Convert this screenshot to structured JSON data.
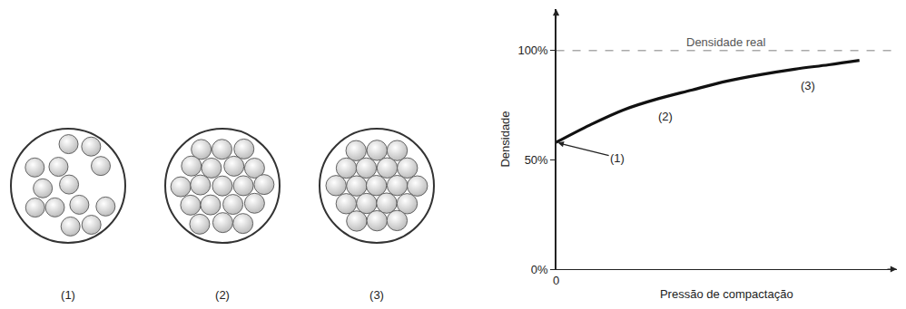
{
  "chart_data": {
    "type": "line",
    "xlabel": "Pressão de compactação",
    "ylabel": "Densidade",
    "xlim": [
      0,
      100
    ],
    "xticks": [
      0
    ],
    "ylim": [
      0,
      119
    ],
    "yticks": [
      {
        "value": 0,
        "label": "0%"
      },
      {
        "value": 50,
        "label": "50%"
      },
      {
        "value": 100,
        "label": "100%"
      }
    ],
    "grid": false,
    "series": [
      {
        "x": [
          0,
          100
        ],
        "values": [
          100,
          100
        ],
        "color": "#aaaaaa",
        "line_style": "dashed"
      },
      {
        "x": [
          0,
          10,
          20,
          30,
          40,
          50,
          60,
          70,
          80,
          89
        ],
        "values": [
          58,
          66,
          73,
          78,
          82,
          86,
          89,
          91.5,
          93.5,
          95.5
        ],
        "color": "#111111",
        "line_style": "solid"
      }
    ],
    "annotations": [
      {
        "text": "Densidade real",
        "x": 50,
        "y": 100
      },
      {
        "text": "(1)",
        "x": 18,
        "y": 51,
        "arrow": true
      },
      {
        "text": "(2)",
        "x": 32,
        "y": 70
      },
      {
        "text": "(3)",
        "x": 74,
        "y": 84
      }
    ]
  },
  "diagram": {
    "panels": [
      {
        "label": "(1)"
      },
      {
        "label": "(2)"
      },
      {
        "label": "(3)"
      }
    ]
  }
}
